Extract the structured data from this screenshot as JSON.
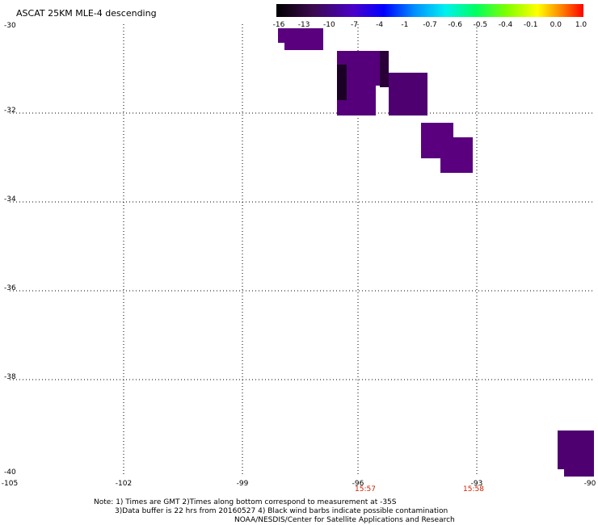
{
  "title": "ASCAT 25KM MLE-4 descending",
  "colorbar": {
    "labels": [
      "-16",
      "-13",
      "-10",
      "-7",
      "-4",
      "-1",
      "-0.7",
      "-0.6",
      "-0.5",
      "-0.4",
      "-0.1",
      "0.0",
      "1.0"
    ],
    "colors": [
      "#000000",
      "#2a0a3a",
      "#4b0082",
      "#5a00c0",
      "#0000ff",
      "#0080ff",
      "#00e5ff",
      "#00ff80",
      "#40ff00",
      "#c0ff00",
      "#ffe000",
      "#ff8000",
      "#ff0000"
    ]
  },
  "axes": {
    "y_ticks": [
      "-30",
      "-32",
      "-34",
      "-36",
      "-38",
      "-40"
    ],
    "x_ticks": [
      "-105",
      "-102",
      "-99",
      "-96",
      "-93",
      "-90"
    ],
    "times": [
      "15:57",
      "15:58"
    ]
  },
  "notes": {
    "line1": "Note: 1) Times are GMT 2)Times along bottom correspond to measurement at -35S",
    "line2": "3)Data buffer is 22 hrs from 20160527 4) Black wind barbs indicate possible contamination",
    "line3": "NOAA/NESDIS/Center for Satellite Applications and Research"
  },
  "colors": {
    "purple": "#5a007e",
    "dark": "#1a0024",
    "time_red": "#cc2200"
  }
}
